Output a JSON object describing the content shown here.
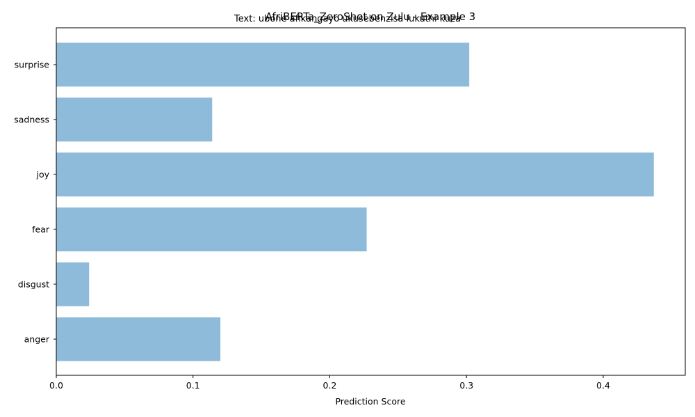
{
  "chart_data": {
    "type": "bar",
    "orientation": "horizontal",
    "title": "AfriBERTa_ZeroShot on Zulu - Example 3",
    "subtitle": "Text: ubone afikangayo ukusebenzisa lukuthi kuza",
    "xlabel": "Prediction Score",
    "ylabel": "",
    "categories": [
      "anger",
      "disgust",
      "fear",
      "joy",
      "sadness",
      "surprise"
    ],
    "values": [
      0.12,
      0.024,
      0.227,
      0.437,
      0.114,
      0.302
    ],
    "xlim": [
      0,
      0.46
    ],
    "xticks": [
      0.0,
      0.1,
      0.2,
      0.3,
      0.4
    ],
    "xtick_labels": [
      "0.0",
      "0.1",
      "0.2",
      "0.3",
      "0.4"
    ],
    "bar_color": "#8fbbda",
    "grid": false,
    "legend": false
  }
}
